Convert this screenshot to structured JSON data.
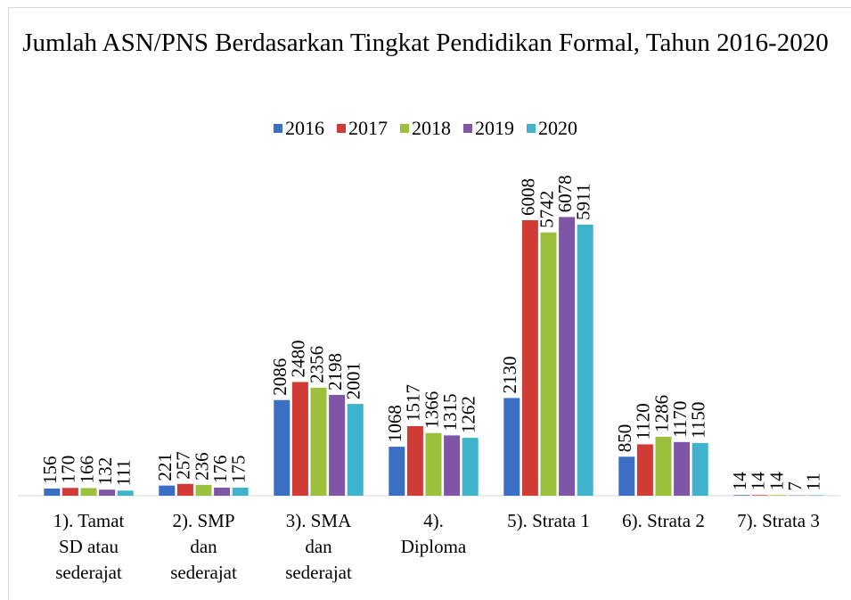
{
  "chart_data": {
    "type": "bar",
    "title": "Jumlah ASN/PNS Berdasarkan Tingkat Pendidikan Formal, Tahun 2016-2020",
    "categories": [
      "1). Tamat\nSD atau\nsederajat",
      "2). SMP\ndan\nsederajat",
      "3). SMA\ndan\nsederajat",
      "4).\nDiploma",
      "5). Strata 1",
      "6). Strata 2",
      "7). Strata 3"
    ],
    "series": [
      {
        "name": "2016",
        "color": "#3a6fc4",
        "values": [
          156,
          221,
          2086,
          1068,
          2130,
          850,
          14
        ]
      },
      {
        "name": "2017",
        "color": "#d03b36",
        "values": [
          170,
          257,
          2480,
          1517,
          6008,
          1120,
          14
        ]
      },
      {
        "name": "2018",
        "color": "#9bc03c",
        "values": [
          166,
          236,
          2356,
          1366,
          5742,
          1286,
          14
        ]
      },
      {
        "name": "2019",
        "color": "#7f55a8",
        "values": [
          132,
          176,
          2198,
          1315,
          6078,
          1170,
          7
        ]
      },
      {
        "name": "2020",
        "color": "#3fb2cc",
        "values": [
          111,
          175,
          2001,
          1262,
          5911,
          1150,
          11
        ]
      }
    ],
    "ylim": [
      0,
      7000
    ],
    "legend": "top"
  }
}
